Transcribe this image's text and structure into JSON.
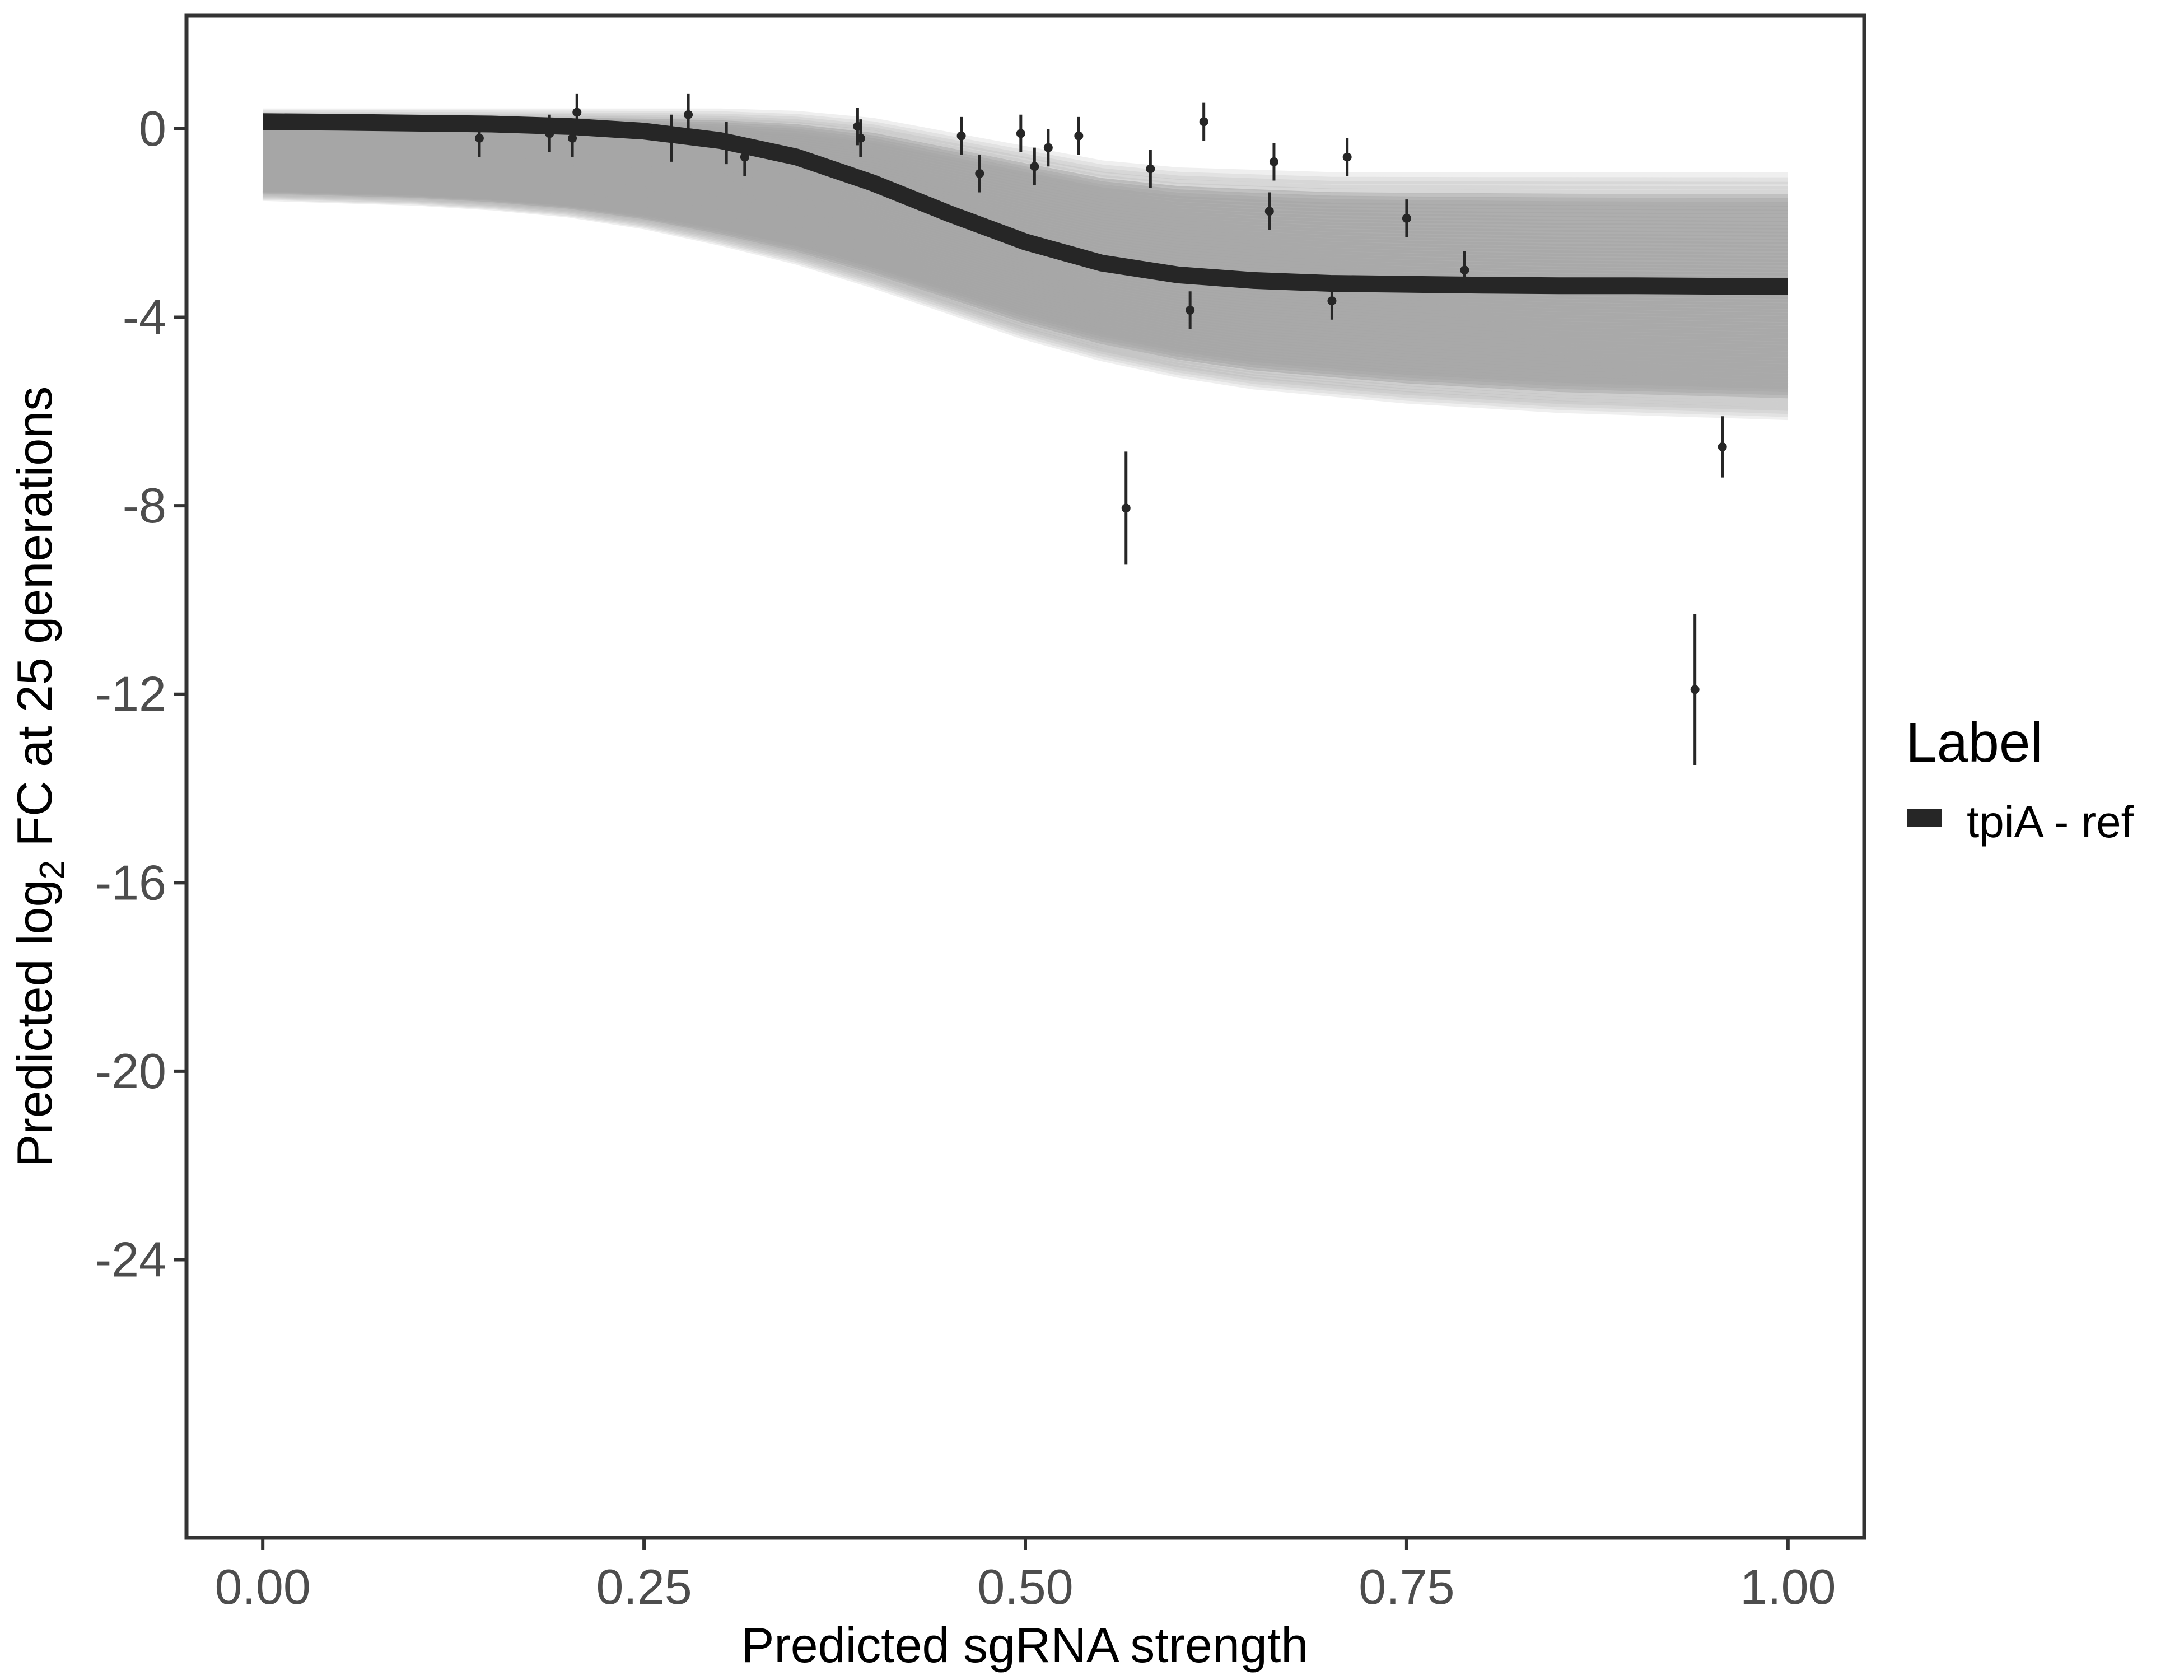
{
  "chart_data": {
    "type": "scatter",
    "xlabel": "Predicted sgRNA strength",
    "ylabel_prefix": "Predicted  log",
    "ylabel_subscript": "2",
    "ylabel_suffix": " FC at 25 generations",
    "xlim": [
      -0.05,
      1.05
    ],
    "ylim": [
      -29.9,
      2.4
    ],
    "x_ticks": [
      0.0,
      0.25,
      0.5,
      0.75,
      1.0
    ],
    "x_tick_labels": [
      "0.00",
      "0.25",
      "0.50",
      "0.75",
      "1.00"
    ],
    "y_ticks": [
      0,
      -4,
      -8,
      -12,
      -16,
      -20,
      -24
    ],
    "y_tick_labels": [
      "0",
      "-4",
      "-8",
      "-12",
      "-16",
      "-20",
      "-24"
    ],
    "grid": false,
    "legend": {
      "title": "Label",
      "position": "right",
      "entries": [
        {
          "label": "tpiA - ref",
          "color": "#262626"
        }
      ]
    },
    "fit_curve": {
      "name": "tpiA - ref",
      "color": "#262626",
      "x": [
        0.0,
        0.05,
        0.1,
        0.15,
        0.2,
        0.25,
        0.3,
        0.35,
        0.4,
        0.45,
        0.5,
        0.55,
        0.6,
        0.65,
        0.7,
        0.75,
        0.8,
        0.85,
        0.9,
        0.95,
        1.0
      ],
      "y": [
        0.15,
        0.14,
        0.12,
        0.1,
        0.05,
        -0.05,
        -0.25,
        -0.6,
        -1.15,
        -1.8,
        -2.4,
        -2.85,
        -3.1,
        -3.22,
        -3.28,
        -3.3,
        -3.32,
        -3.33,
        -3.33,
        -3.34,
        -3.34
      ]
    },
    "uncertainty_band": {
      "color": "#a6a6a6",
      "x": [
        0.0,
        0.05,
        0.1,
        0.15,
        0.2,
        0.25,
        0.3,
        0.35,
        0.4,
        0.45,
        0.5,
        0.55,
        0.6,
        0.65,
        0.7,
        0.75,
        0.8,
        0.85,
        0.9,
        0.95,
        1.0
      ],
      "upper": [
        0.3,
        0.3,
        0.3,
        0.3,
        0.3,
        0.3,
        0.3,
        0.25,
        0.1,
        -0.2,
        -0.5,
        -0.8,
        -0.95,
        -1.0,
        -1.05,
        -1.05,
        -1.05,
        -1.05,
        -1.05,
        -1.05,
        -1.05
      ],
      "lower": [
        -1.4,
        -1.45,
        -1.5,
        -1.6,
        -1.75,
        -2.0,
        -2.35,
        -2.75,
        -3.25,
        -3.8,
        -4.35,
        -4.8,
        -5.15,
        -5.4,
        -5.55,
        -5.7,
        -5.8,
        -5.9,
        -5.95,
        -6.0,
        -6.05
      ]
    },
    "points": [
      {
        "x": 0.142,
        "y": -0.2,
        "lo": -0.6,
        "hi": 0.2
      },
      {
        "x": 0.188,
        "y": -0.1,
        "lo": -0.5,
        "hi": 0.3
      },
      {
        "x": 0.203,
        "y": -0.2,
        "lo": -0.6,
        "hi": 0.2
      },
      {
        "x": 0.206,
        "y": 0.35,
        "lo": -0.1,
        "hi": 0.75
      },
      {
        "x": 0.268,
        "y": -0.2,
        "lo": -0.7,
        "hi": 0.3
      },
      {
        "x": 0.279,
        "y": 0.3,
        "lo": -0.15,
        "hi": 0.75
      },
      {
        "x": 0.304,
        "y": -0.3,
        "lo": -0.75,
        "hi": 0.15
      },
      {
        "x": 0.316,
        "y": -0.6,
        "lo": -1.0,
        "hi": -0.2
      },
      {
        "x": 0.39,
        "y": 0.05,
        "lo": -0.35,
        "hi": 0.45
      },
      {
        "x": 0.392,
        "y": -0.2,
        "lo": -0.6,
        "hi": 0.2
      },
      {
        "x": 0.458,
        "y": -0.15,
        "lo": -0.55,
        "hi": 0.25
      },
      {
        "x": 0.47,
        "y": -0.95,
        "lo": -1.35,
        "hi": -0.55
      },
      {
        "x": 0.497,
        "y": -0.1,
        "lo": -0.5,
        "hi": 0.3
      },
      {
        "x": 0.506,
        "y": -0.8,
        "lo": -1.2,
        "hi": -0.4
      },
      {
        "x": 0.515,
        "y": -0.4,
        "lo": -0.8,
        "hi": 0.0
      },
      {
        "x": 0.535,
        "y": -0.15,
        "lo": -0.55,
        "hi": 0.25
      },
      {
        "x": 0.566,
        "y": -8.05,
        "lo": -9.25,
        "hi": -6.85
      },
      {
        "x": 0.582,
        "y": -0.85,
        "lo": -1.25,
        "hi": -0.45
      },
      {
        "x": 0.608,
        "y": -3.85,
        "lo": -4.25,
        "hi": -3.45
      },
      {
        "x": 0.617,
        "y": 0.15,
        "lo": -0.25,
        "hi": 0.55
      },
      {
        "x": 0.66,
        "y": -1.75,
        "lo": -2.15,
        "hi": -1.35
      },
      {
        "x": 0.663,
        "y": -0.7,
        "lo": -1.1,
        "hi": -0.3
      },
      {
        "x": 0.701,
        "y": -3.65,
        "lo": -4.05,
        "hi": -3.25
      },
      {
        "x": 0.711,
        "y": -0.6,
        "lo": -1.0,
        "hi": -0.2
      },
      {
        "x": 0.75,
        "y": -1.9,
        "lo": -2.3,
        "hi": -1.5
      },
      {
        "x": 0.788,
        "y": -3.0,
        "lo": -3.4,
        "hi": -2.6
      },
      {
        "x": 0.939,
        "y": -11.9,
        "lo": -13.5,
        "hi": -10.3
      },
      {
        "x": 0.957,
        "y": -6.75,
        "lo": -7.4,
        "hi": -6.1
      }
    ],
    "point_color": "#262626"
  }
}
